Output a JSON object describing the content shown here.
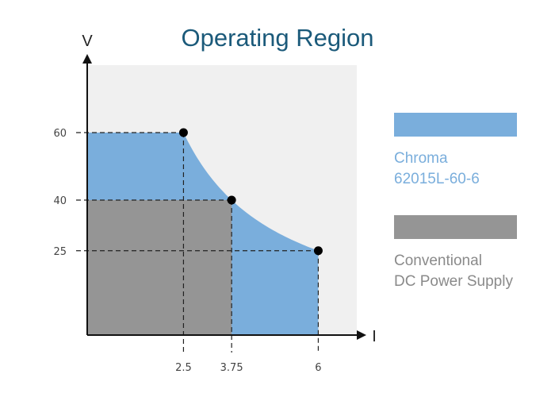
{
  "chart_data": {
    "type": "area",
    "title": "Operating Region",
    "xlabel": "I",
    "ylabel": "V",
    "x_ticks": [
      "2.5",
      "3.75",
      "6"
    ],
    "y_ticks": [
      "60",
      "40",
      "25"
    ],
    "xlim": [
      0,
      7
    ],
    "ylim": [
      0,
      80
    ],
    "grid": false,
    "legend_position": "right",
    "series": [
      {
        "name": "Chroma 62015L-60-6",
        "name_lines": [
          "Chroma",
          "62015L-60-6"
        ],
        "color": "#7aaedc",
        "text_color": "#7aaedc",
        "points": [
          {
            "x": 0,
            "y": 60
          },
          {
            "x": 2.5,
            "y": 60
          },
          {
            "x": 3.75,
            "y": 40
          },
          {
            "x": 6,
            "y": 25
          },
          {
            "x": 6,
            "y": 0
          }
        ],
        "curve": "constant-power-150W"
      },
      {
        "name": "Conventional DC Power Supply",
        "name_lines": [
          "Conventional",
          "DC Power Supply"
        ],
        "color": "#959595",
        "text_color": "#8a8a8a",
        "points": [
          {
            "x": 0,
            "y": 40
          },
          {
            "x": 3.75,
            "y": 40
          },
          {
            "x": 3.75,
            "y": 0
          }
        ]
      }
    ],
    "markers": [
      {
        "x": 2.5,
        "y": 60
      },
      {
        "x": 3.75,
        "y": 40
      },
      {
        "x": 6,
        "y": 25
      }
    ],
    "colors": {
      "plot_background": "#f0f0f0",
      "axis": "#111111",
      "marker": "#000000"
    }
  }
}
